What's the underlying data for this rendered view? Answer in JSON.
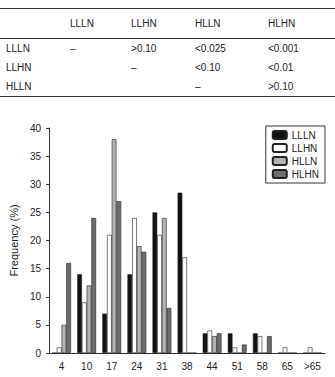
{
  "table": {
    "header": [
      null,
      "LLLN",
      "LLHN",
      "HLLN",
      "HLHN"
    ],
    "rows": [
      [
        "LLLN",
        "–",
        ">0.10",
        "<0.025",
        "<0.001"
      ],
      [
        "LLHN",
        null,
        "–",
        "<0.10",
        "<0.01"
      ],
      [
        "HLLN",
        null,
        null,
        "–",
        ">0.10"
      ]
    ]
  },
  "chart_data": {
    "type": "bar",
    "ylabel": "Frequency (%)",
    "categories": [
      "4",
      "10",
      "17",
      "24",
      "31",
      "38",
      "44",
      "51",
      "58",
      "65",
      ">65"
    ],
    "series": [
      {
        "name": "LLLN",
        "color": "#111111",
        "values": [
          0,
          14,
          7,
          14,
          25,
          28.5,
          3.5,
          3.5,
          3.5,
          0,
          0
        ]
      },
      {
        "name": "LLHN",
        "color": "#ffffff",
        "values": [
          1,
          9,
          21,
          24,
          21,
          17,
          4,
          1,
          3,
          1,
          1
        ]
      },
      {
        "name": "HLLN",
        "color": "#b3b3b3",
        "values": [
          5,
          12,
          38,
          19,
          24,
          0,
          3,
          0,
          0,
          0,
          0
        ]
      },
      {
        "name": "HLHN",
        "color": "#6e6e6e",
        "values": [
          16,
          24,
          27,
          18,
          8,
          0,
          3.5,
          1.5,
          3,
          0,
          0
        ]
      }
    ],
    "ylim": [
      0,
      40
    ],
    "yticks": [
      0,
      5,
      10,
      15,
      20,
      25,
      30,
      35,
      40
    ],
    "grid": false,
    "legend": "upper right"
  }
}
